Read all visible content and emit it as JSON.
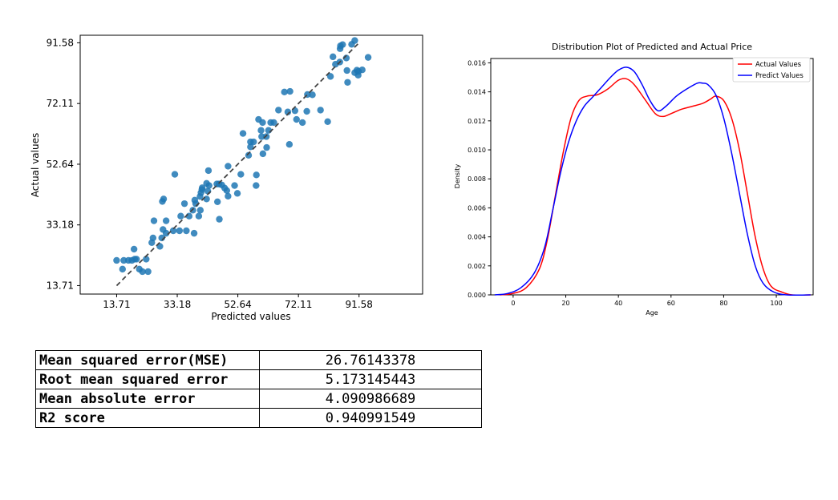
{
  "chart_data": [
    {
      "type": "scatter",
      "title": "",
      "xlabel": "Predicted values",
      "ylabel": "Actual values",
      "xlim": [
        2,
        112
      ],
      "ylim": [
        11,
        94
      ],
      "x_ticks": [
        13.71,
        33.18,
        52.64,
        72.11,
        91.58
      ],
      "y_ticks": [
        13.71,
        33.18,
        52.64,
        72.11,
        91.58
      ],
      "x_tick_labels": [
        "13.71",
        "33.18",
        "52.64",
        "72.11",
        "91.58"
      ],
      "y_tick_labels": [
        "13.71",
        "33.18",
        "52.64",
        "72.11",
        "91.58"
      ],
      "point_color": "#1f77b4",
      "reference_line": {
        "from": [
          13.71,
          13.71
        ],
        "to": [
          91.58,
          91.58
        ],
        "style": "dashed",
        "color": "#444444"
      },
      "points": [
        [
          13.7,
          21.8
        ],
        [
          15.6,
          19.0
        ],
        [
          16.0,
          21.8
        ],
        [
          17.5,
          21.8
        ],
        [
          18.6,
          21.8
        ],
        [
          19.5,
          22.2
        ],
        [
          19.3,
          25.4
        ],
        [
          20.1,
          22.2
        ],
        [
          21.0,
          19.0
        ],
        [
          22.0,
          18.2
        ],
        [
          23.2,
          22.2
        ],
        [
          23.8,
          18.2
        ],
        [
          25.0,
          27.5
        ],
        [
          25.4,
          29.0
        ],
        [
          25.7,
          34.5
        ],
        [
          27.6,
          26.3
        ],
        [
          28.2,
          29.0
        ],
        [
          28.6,
          31.7
        ],
        [
          28.4,
          40.7
        ],
        [
          28.8,
          41.5
        ],
        [
          29.6,
          30.5
        ],
        [
          29.6,
          34.5
        ],
        [
          31.9,
          31.3
        ],
        [
          32.4,
          49.4
        ],
        [
          33.9,
          31.3
        ],
        [
          34.3,
          36.0
        ],
        [
          35.5,
          40.0
        ],
        [
          36.1,
          31.3
        ],
        [
          37.0,
          36.0
        ],
        [
          38.6,
          30.5
        ],
        [
          38.2,
          37.9
        ],
        [
          38.8,
          41.1
        ],
        [
          39.1,
          40.0
        ],
        [
          40.1,
          36.0
        ],
        [
          40.6,
          37.9
        ],
        [
          40.5,
          42.3
        ],
        [
          40.8,
          43.5
        ],
        [
          41.1,
          44.5
        ],
        [
          41.2,
          45.1
        ],
        [
          42.6,
          41.5
        ],
        [
          43.0,
          44.0
        ],
        [
          42.6,
          46.5
        ],
        [
          43.4,
          45.8
        ],
        [
          43.2,
          50.6
        ],
        [
          45.9,
          46.3
        ],
        [
          46.6,
          46.3
        ],
        [
          46.1,
          40.6
        ],
        [
          46.7,
          35.0
        ],
        [
          47.5,
          46.0
        ],
        [
          48.4,
          45.0
        ],
        [
          49.1,
          44.2
        ],
        [
          49.5,
          42.4
        ],
        [
          49.5,
          52.0
        ],
        [
          51.6,
          45.8
        ],
        [
          52.5,
          43.3
        ],
        [
          53.6,
          49.4
        ],
        [
          54.3,
          62.5
        ],
        [
          56.1,
          55.5
        ],
        [
          56.7,
          59.8
        ],
        [
          56.7,
          58.2
        ],
        [
          57.7,
          59.8
        ],
        [
          58.5,
          45.8
        ],
        [
          58.6,
          49.2
        ],
        [
          59.3,
          67.0
        ],
        [
          60.1,
          63.5
        ],
        [
          60.3,
          61.5
        ],
        [
          60.6,
          66.0
        ],
        [
          60.7,
          56.0
        ],
        [
          61.8,
          61.5
        ],
        [
          62.5,
          63.5
        ],
        [
          61.9,
          58.0
        ],
        [
          63.2,
          66.0
        ],
        [
          64.2,
          66.0
        ],
        [
          65.7,
          70.0
        ],
        [
          67.6,
          75.8
        ],
        [
          69.2,
          59.0
        ],
        [
          68.7,
          69.4
        ],
        [
          69.4,
          76.0
        ],
        [
          71.0,
          69.8
        ],
        [
          71.5,
          67.0
        ],
        [
          73.4,
          66.0
        ],
        [
          74.8,
          69.6
        ],
        [
          75.0,
          75.0
        ],
        [
          76.6,
          74.9
        ],
        [
          79.2,
          70.0
        ],
        [
          81.5,
          66.3
        ],
        [
          82.4,
          80.8
        ],
        [
          83.2,
          87.1
        ],
        [
          84.0,
          84.7
        ],
        [
          85.4,
          85.4
        ],
        [
          85.5,
          89.7
        ],
        [
          85.6,
          90.6
        ],
        [
          86.3,
          91.0
        ],
        [
          87.5,
          86.7
        ],
        [
          89.2,
          91.1
        ],
        [
          90.2,
          92.3
        ],
        [
          87.9,
          78.9
        ],
        [
          90.2,
          82.0
        ],
        [
          91.3,
          81.2
        ],
        [
          90.9,
          82.8
        ],
        [
          91.4,
          82.4
        ],
        [
          92.6,
          82.9
        ],
        [
          87.7,
          82.7
        ],
        [
          94.5,
          86.9
        ]
      ]
    },
    {
      "type": "line",
      "title": "Distribution Plot of Predicted and Actual Price",
      "xlabel": "Age",
      "ylabel": "Density",
      "xlim": [
        -8.5,
        114
      ],
      "ylim": [
        0,
        0.0163
      ],
      "x_ticks": [
        0,
        20,
        40,
        60,
        80,
        100
      ],
      "y_ticks": [
        0.0,
        0.002,
        0.004,
        0.006,
        0.008,
        0.01,
        0.012,
        0.014,
        0.016
      ],
      "x_tick_labels": [
        "0",
        "20",
        "40",
        "60",
        "80",
        "100"
      ],
      "y_tick_labels": [
        "0.000",
        "0.002",
        "0.004",
        "0.006",
        "0.008",
        "0.010",
        "0.012",
        "0.014",
        "0.016"
      ],
      "legend": {
        "position": "top-right"
      },
      "series": [
        {
          "name": "Actual Values",
          "color": "#ff0000",
          "points": [
            [
              -5,
              0.0
            ],
            [
              0,
              0.0001
            ],
            [
              5,
              0.0005
            ],
            [
              10,
              0.0018
            ],
            [
              13,
              0.0038
            ],
            [
              16,
              0.0068
            ],
            [
              19,
              0.0098
            ],
            [
              22,
              0.0122
            ],
            [
              25,
              0.0134
            ],
            [
              28,
              0.0137
            ],
            [
              32,
              0.0138
            ],
            [
              36,
              0.0142
            ],
            [
              40,
              0.0148
            ],
            [
              43,
              0.0149
            ],
            [
              46,
              0.0145
            ],
            [
              50,
              0.0135
            ],
            [
              54,
              0.0125
            ],
            [
              57,
              0.0123
            ],
            [
              60,
              0.0125
            ],
            [
              64,
              0.0128
            ],
            [
              68,
              0.013
            ],
            [
              72,
              0.0132
            ],
            [
              75,
              0.0135
            ],
            [
              77,
              0.0137
            ],
            [
              80,
              0.0134
            ],
            [
              83,
              0.0122
            ],
            [
              86,
              0.01
            ],
            [
              89,
              0.007
            ],
            [
              92,
              0.004
            ],
            [
              95,
              0.0018
            ],
            [
              98,
              0.0006
            ],
            [
              102,
              0.0002
            ],
            [
              106,
              0.0
            ],
            [
              113,
              0.0
            ]
          ]
        },
        {
          "name": "Predict Values",
          "color": "#0000ff",
          "points": [
            [
              -7,
              0.0
            ],
            [
              -2,
              0.0001
            ],
            [
              3,
              0.0005
            ],
            [
              8,
              0.0015
            ],
            [
              12,
              0.0033
            ],
            [
              15,
              0.0058
            ],
            [
              18,
              0.0084
            ],
            [
              21,
              0.0105
            ],
            [
              24,
              0.012
            ],
            [
              27,
              0.013
            ],
            [
              30,
              0.0136
            ],
            [
              33,
              0.0142
            ],
            [
              37,
              0.015
            ],
            [
              40,
              0.0155
            ],
            [
              43,
              0.0157
            ],
            [
              46,
              0.0154
            ],
            [
              49,
              0.0145
            ],
            [
              52,
              0.0134
            ],
            [
              55,
              0.0127
            ],
            [
              58,
              0.013
            ],
            [
              62,
              0.0137
            ],
            [
              66,
              0.0142
            ],
            [
              70,
              0.0146
            ],
            [
              72,
              0.0146
            ],
            [
              74,
              0.0145
            ],
            [
              77,
              0.0138
            ],
            [
              80,
              0.0122
            ],
            [
              83,
              0.0098
            ],
            [
              86,
              0.007
            ],
            [
              89,
              0.0042
            ],
            [
              92,
              0.002
            ],
            [
              95,
              0.0008
            ],
            [
              99,
              0.0002
            ],
            [
              104,
              0.0
            ],
            [
              113,
              0.0
            ]
          ]
        }
      ]
    }
  ],
  "metrics": [
    {
      "name": "Mean squared error(MSE)",
      "value": "26.76143378"
    },
    {
      "name": "Root mean squared error",
      "value": "5.173145443"
    },
    {
      "name": "Mean absolute error",
      "value": "4.090986689"
    },
    {
      "name": "R2 score",
      "value": "0.940991549"
    }
  ]
}
